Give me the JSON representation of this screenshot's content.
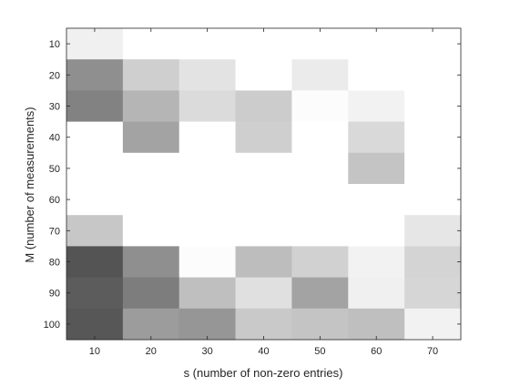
{
  "chart_data": {
    "type": "heatmap",
    "title": "",
    "xlabel": "s (number of non-zero entries)",
    "ylabel": "M (number of measurements)",
    "x": [
      10,
      20,
      30,
      40,
      50,
      60,
      70
    ],
    "y": [
      10,
      20,
      30,
      40,
      50,
      60,
      70,
      80,
      90,
      100
    ],
    "xticks": [
      "10",
      "20",
      "30",
      "40",
      "50",
      "60",
      "70"
    ],
    "yticks": [
      "10",
      "20",
      "30",
      "40",
      "50",
      "60",
      "70",
      "80",
      "90",
      "100"
    ],
    "xlim": [
      5,
      75
    ],
    "ylim": [
      5,
      105
    ],
    "y_direction": "reverse",
    "colormap": "gray",
    "value_range": [
      0,
      1
    ],
    "values": [
      [
        0.94,
        1.0,
        1.0,
        1.0,
        1.0,
        1.0,
        1.0
      ],
      [
        0.56,
        0.81,
        0.89,
        1.0,
        0.92,
        1.0,
        1.0
      ],
      [
        0.51,
        0.71,
        0.86,
        0.8,
        0.99,
        0.95,
        1.0
      ],
      [
        1.0,
        0.64,
        1.0,
        0.81,
        1.0,
        0.85,
        1.0
      ],
      [
        1.0,
        1.0,
        1.0,
        1.0,
        1.0,
        0.77,
        1.0
      ],
      [
        1.0,
        1.0,
        1.0,
        1.0,
        1.0,
        1.0,
        1.0
      ],
      [
        0.78,
        1.0,
        1.0,
        1.0,
        1.0,
        1.0,
        0.9
      ],
      [
        0.33,
        0.56,
        0.99,
        0.74,
        0.82,
        0.95,
        0.83
      ],
      [
        0.36,
        0.49,
        0.75,
        0.88,
        0.64,
        0.94,
        0.84
      ],
      [
        0.34,
        0.61,
        0.59,
        0.79,
        0.77,
        0.75,
        0.95
      ]
    ]
  }
}
